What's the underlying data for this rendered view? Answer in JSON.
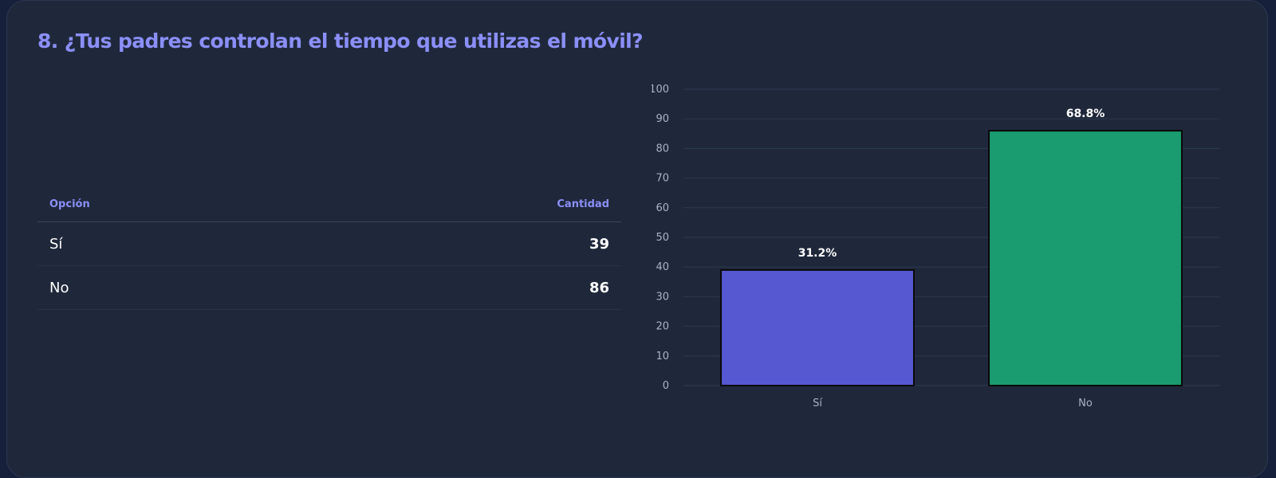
{
  "question": {
    "title": "8. ¿Tus padres controlan el tiempo que utilizas el móvil?"
  },
  "table": {
    "headers": {
      "option": "Opción",
      "quantity": "Cantidad"
    },
    "rows": [
      {
        "option": "Sí",
        "quantity": "39"
      },
      {
        "option": "No",
        "quantity": "86"
      }
    ]
  },
  "chart_data": {
    "type": "bar",
    "categories": [
      "Sí",
      "No"
    ],
    "values": [
      39,
      86
    ],
    "data_labels": [
      "31.2%",
      "68.8%"
    ],
    "colors": [
      "#5558d0",
      "#1b9b70"
    ],
    "ylim": [
      0,
      100
    ],
    "yticks": [
      0,
      10,
      20,
      30,
      40,
      50,
      60,
      70,
      80,
      90,
      100
    ],
    "grid": true,
    "legend": "none",
    "title": "",
    "xlabel": "",
    "ylabel": ""
  },
  "colors": {
    "card_background": "#1f283b",
    "accent": "#8b8ff8",
    "text": "#ffffff",
    "tick_text": "#aab2c5",
    "grid": "#2d3850"
  }
}
